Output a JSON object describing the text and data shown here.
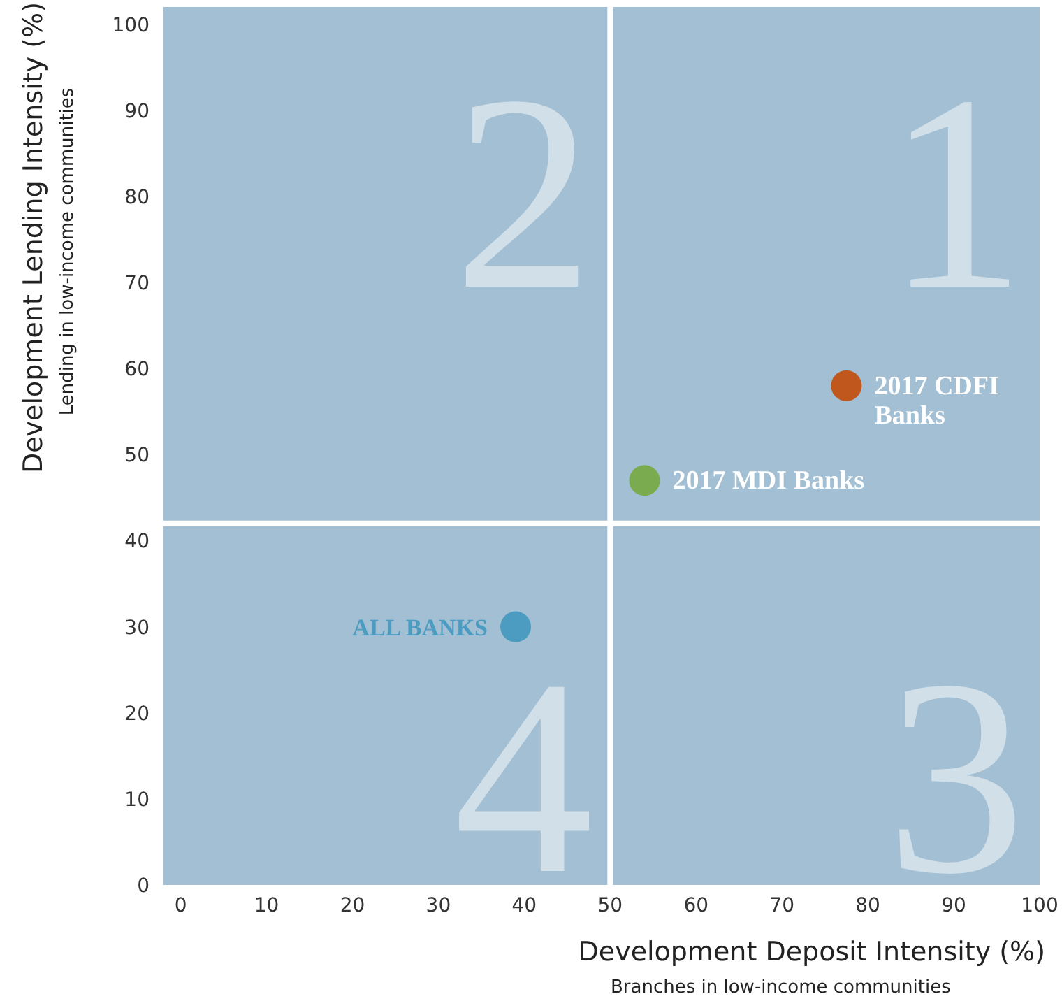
{
  "chart_data": {
    "type": "scatter",
    "xlabel": "Development Deposit Intensity (%)",
    "ylabel": "Development Lending Intensity (%)",
    "annotations": [
      "1",
      "2",
      "3",
      "4",
      "Branches in low-income communities",
      "Lending in low-income communities"
    ],
    "series": [
      {
        "name": "2017 CDFI Banks",
        "color": "#c0581e",
        "x": [
          77.5
        ],
        "values": [
          58
        ]
      },
      {
        "name": "2017 MDI Banks",
        "color": "#7aab4f",
        "x": [
          54
        ],
        "values": [
          47
        ]
      },
      {
        "name": "ALL BANKS",
        "color": "#4c9bc0",
        "x": [
          39
        ],
        "values": [
          30
        ]
      }
    ],
    "xlim": [
      -2,
      100
    ],
    "ylim": [
      0,
      102
    ],
    "xticks": [
      0,
      10,
      20,
      30,
      40,
      50,
      60,
      70,
      80,
      90,
      100
    ],
    "yticks": [
      0,
      10,
      20,
      30,
      40,
      50,
      60,
      70,
      80,
      90,
      100
    ],
    "ref_lines": [
      {
        "axis": "x",
        "value": 50,
        "color": "#ffffff"
      },
      {
        "axis": "y",
        "value": 42,
        "color": "#ffffff"
      }
    ],
    "grid": false,
    "marker": "circle"
  }
}
